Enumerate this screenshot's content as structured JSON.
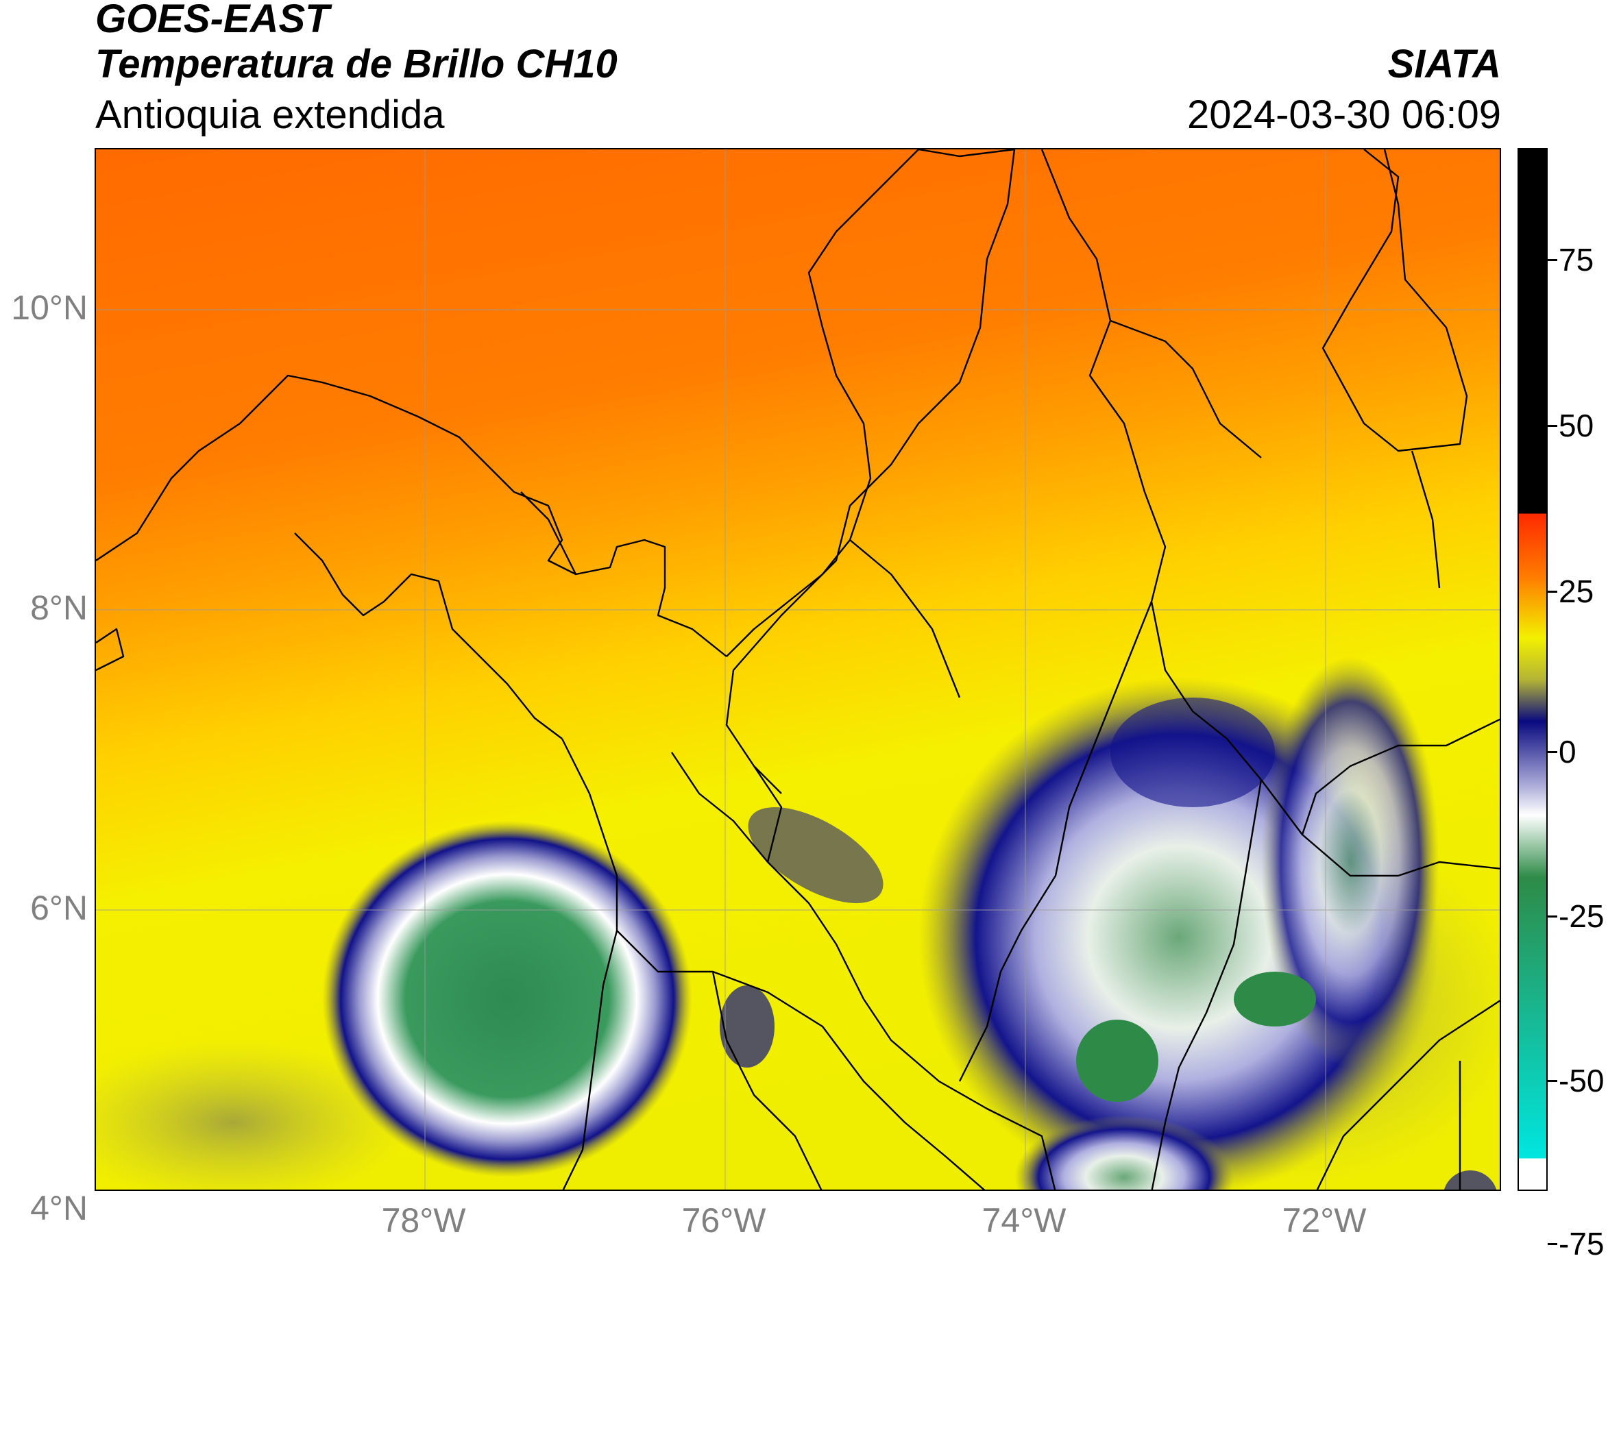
{
  "header": {
    "satellite": "GOES-EAST",
    "product": "Temperatura de Brillo CH10",
    "region": "Antioquia extendida",
    "agency": "SIATA",
    "timestamp": "2024-03-30 06:09"
  },
  "map": {
    "lat_labels": [
      "10°N",
      "8°N",
      "6°N",
      "4°N"
    ],
    "lon_labels": [
      "78°W",
      "76°W",
      "74°W",
      "72°W"
    ],
    "lon_range": [
      -80.2,
      -70.8
    ],
    "lat_range": [
      2.8,
      11.1
    ]
  },
  "colorbar": {
    "ticks": [
      "75",
      "50",
      "25",
      "0",
      "-25",
      "-50",
      "-75"
    ],
    "colors": {
      "black": "#000000",
      "red": "#ff2a00",
      "orange": "#ff7a00",
      "yellow": "#f2f000",
      "olive": "#b3b336",
      "navy": "#0a0a80",
      "lavender": "#a8a8d8",
      "white": "#ffffff",
      "green": "#2e8b47",
      "cyan": "#00e6e0"
    }
  }
}
